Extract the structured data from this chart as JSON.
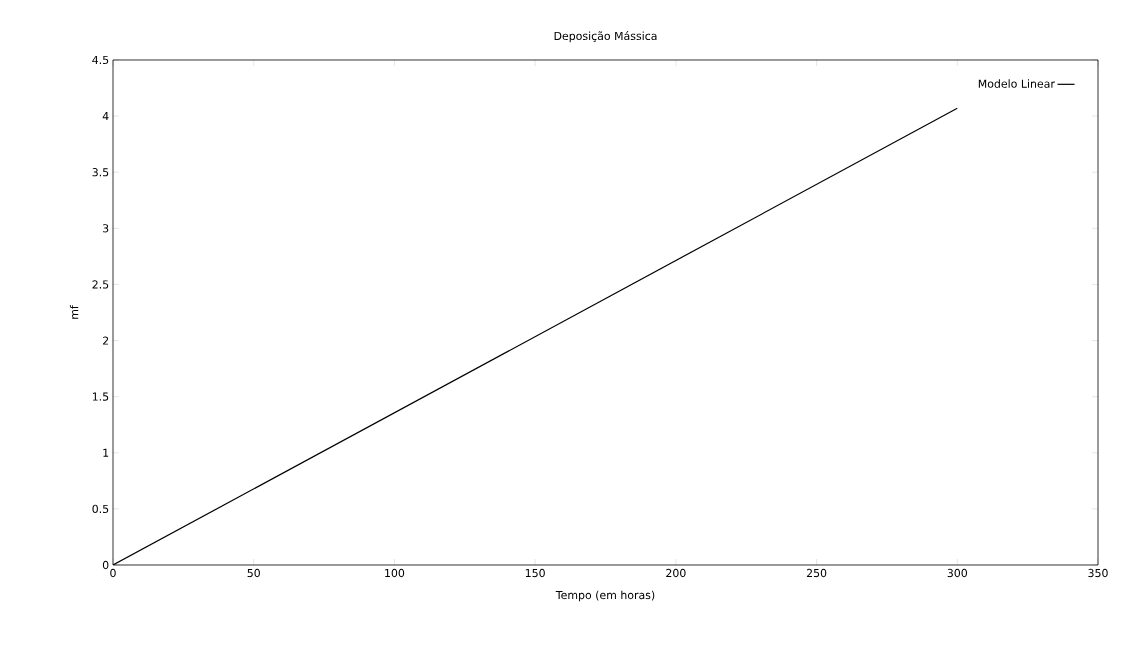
{
  "chart_data": {
    "type": "line",
    "title": "Deposição Mássica",
    "xlabel": "Tempo (em horas)",
    "ylabel": "mf",
    "x": [
      0,
      300
    ],
    "series": [
      {
        "name": "Modelo Linear",
        "color": "#000000",
        "values": [
          0,
          4.07
        ]
      }
    ],
    "xlim": [
      0,
      350
    ],
    "ylim": [
      0,
      4.5
    ],
    "xticks": [
      0,
      50,
      100,
      150,
      200,
      250,
      300,
      350
    ],
    "yticks": [
      0,
      0.5,
      1,
      1.5,
      2,
      2.5,
      3,
      3.5,
      4,
      4.5
    ],
    "legend": "top right"
  }
}
